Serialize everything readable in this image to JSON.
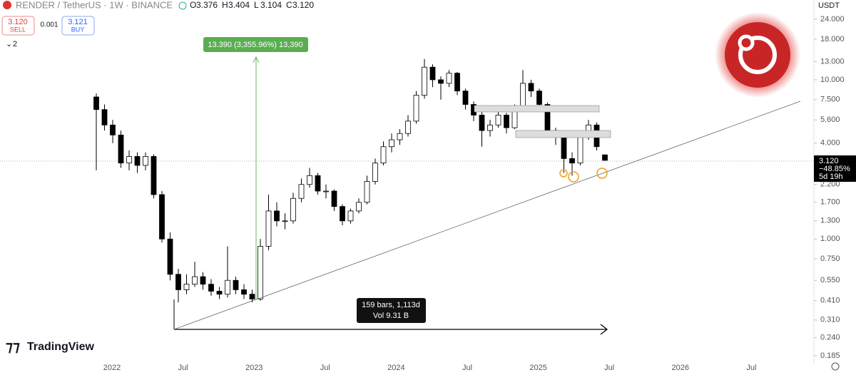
{
  "header": {
    "symbol": "RENDER / TetherUS · 1W · BINANCE",
    "ohlc": [
      {
        "key": "O",
        "value": "3.376"
      },
      {
        "key": "H",
        "value": "3.404"
      },
      {
        "key": "L",
        "value": "3.104"
      },
      {
        "key": "C",
        "value": "3.120"
      }
    ],
    "sell_price": "3.120",
    "sell": "SELL",
    "spread": "0.001",
    "buy_price": "3.121",
    "buy": "BUY",
    "indicators": "2",
    "currency": "USDT"
  },
  "price_label": {
    "price": "3.120",
    "change": "−48.85%",
    "countdown": "5d 19h"
  },
  "measure_up": "13.390 (3,355.96%) 13,390",
  "measure_range": {
    "bars": "159 bars, 1,113d",
    "volume": "Vol 9.31 B"
  },
  "brand": "TradingView",
  "chart_data": {
    "type": "candlestick",
    "log_scale": true,
    "up_color": "#ffffff",
    "down_color": "#000000",
    "x_labels": [
      "2022",
      "Jul",
      "2023",
      "Jul",
      "2024",
      "Jul",
      "2025",
      "Jul",
      "2026",
      "Jul"
    ],
    "ylim": [
      0.165,
      31.7
    ],
    "yticks": [
      {
        "value": 24,
        "label": "24.000"
      },
      {
        "value": 18,
        "label": "18.000"
      },
      {
        "value": 13,
        "label": "13.000"
      },
      {
        "value": 10,
        "label": "10.000"
      },
      {
        "value": 7.5,
        "label": "7.500"
      },
      {
        "value": 5.6,
        "label": "5.600"
      },
      {
        "value": 4,
        "label": "4.000"
      },
      {
        "value": 2.2,
        "label": "2.200"
      },
      {
        "value": 1.7,
        "label": "1.700"
      },
      {
        "value": 1.3,
        "label": "1.300"
      },
      {
        "value": 1,
        "label": "1.000"
      },
      {
        "value": 0.75,
        "label": "0.750"
      },
      {
        "value": 0.55,
        "label": "0.550"
      },
      {
        "value": 0.41,
        "label": "0.410"
      },
      {
        "value": 0.31,
        "label": "0.310"
      },
      {
        "value": 0.24,
        "label": "0.240"
      },
      {
        "value": 0.185,
        "label": "0.185"
      }
    ],
    "candles": [
      [
        7.8,
        8.2,
        2.7,
        6.5
      ],
      [
        6.5,
        7.0,
        4.8,
        5.2
      ],
      [
        5.2,
        5.6,
        4.0,
        4.5
      ],
      [
        4.5,
        4.8,
        2.8,
        3.0
      ],
      [
        3.0,
        3.6,
        2.7,
        3.3
      ],
      [
        3.3,
        3.5,
        2.6,
        2.9
      ],
      [
        2.9,
        3.5,
        2.7,
        3.3
      ],
      [
        3.3,
        3.4,
        1.8,
        1.9
      ],
      [
        1.9,
        2.0,
        0.95,
        1.0
      ],
      [
        1.0,
        1.1,
        0.55,
        0.6
      ],
      [
        0.6,
        0.65,
        0.4,
        0.48
      ],
      [
        0.48,
        0.6,
        0.45,
        0.52
      ],
      [
        0.52,
        0.72,
        0.5,
        0.58
      ],
      [
        0.58,
        0.62,
        0.48,
        0.52
      ],
      [
        0.52,
        0.56,
        0.44,
        0.47
      ],
      [
        0.47,
        0.5,
        0.42,
        0.45
      ],
      [
        0.45,
        0.9,
        0.43,
        0.55
      ],
      [
        0.55,
        0.58,
        0.45,
        0.48
      ],
      [
        0.48,
        0.52,
        0.42,
        0.45
      ],
      [
        0.45,
        0.48,
        0.4,
        0.42
      ],
      [
        0.42,
        1.0,
        0.41,
        0.9
      ],
      [
        0.9,
        1.9,
        0.85,
        1.5
      ],
      [
        1.5,
        1.7,
        1.2,
        1.3
      ],
      [
        1.3,
        1.45,
        1.15,
        1.3
      ],
      [
        1.3,
        1.95,
        1.25,
        1.8
      ],
      [
        1.8,
        2.4,
        1.7,
        2.2
      ],
      [
        2.2,
        2.8,
        2.1,
        2.5
      ],
      [
        2.5,
        2.6,
        1.9,
        2.0
      ],
      [
        2.0,
        2.2,
        1.8,
        2.0
      ],
      [
        2.0,
        2.05,
        1.5,
        1.6
      ],
      [
        1.6,
        1.65,
        1.22,
        1.3
      ],
      [
        1.3,
        1.55,
        1.25,
        1.5
      ],
      [
        1.5,
        1.8,
        1.45,
        1.7
      ],
      [
        1.7,
        2.5,
        1.65,
        2.3
      ],
      [
        2.3,
        3.2,
        2.2,
        3.0
      ],
      [
        3.0,
        4.1,
        2.9,
        3.8
      ],
      [
        3.8,
        4.6,
        3.5,
        4.2
      ],
      [
        4.2,
        4.9,
        3.9,
        4.6
      ],
      [
        4.6,
        6.0,
        4.4,
        5.5
      ],
      [
        5.5,
        8.5,
        5.3,
        8.0
      ],
      [
        8.0,
        13.5,
        7.6,
        12.0
      ],
      [
        12.0,
        12.5,
        9.0,
        10.0
      ],
      [
        10.0,
        10.5,
        7.5,
        9.5
      ],
      [
        9.5,
        11.5,
        9.0,
        11.0
      ],
      [
        11.0,
        11.2,
        8.0,
        8.5
      ],
      [
        8.5,
        8.8,
        6.5,
        7.0
      ],
      [
        7.0,
        7.3,
        5.5,
        6.0
      ],
      [
        6.0,
        6.5,
        3.8,
        4.8
      ],
      [
        4.8,
        5.6,
        4.4,
        5.2
      ],
      [
        5.2,
        6.5,
        5.0,
        6.0
      ],
      [
        6.0,
        6.2,
        4.6,
        5.0
      ],
      [
        5.0,
        7.0,
        4.9,
        6.5
      ],
      [
        6.5,
        11.5,
        6.3,
        9.5
      ],
      [
        9.5,
        10.0,
        7.8,
        8.5
      ],
      [
        8.5,
        8.8,
        6.5,
        7.0
      ],
      [
        7.0,
        7.2,
        4.5,
        4.8
      ],
      [
        4.8,
        5.0,
        3.9,
        4.4
      ],
      [
        4.4,
        4.6,
        2.6,
        3.2
      ],
      [
        3.2,
        3.5,
        2.5,
        3.0
      ],
      [
        3.0,
        4.6,
        2.9,
        4.4
      ],
      [
        4.4,
        5.6,
        4.2,
        5.2
      ],
      [
        5.2,
        5.4,
        3.6,
        3.8
      ],
      [
        3.376,
        3.404,
        3.104,
        3.12
      ]
    ]
  }
}
